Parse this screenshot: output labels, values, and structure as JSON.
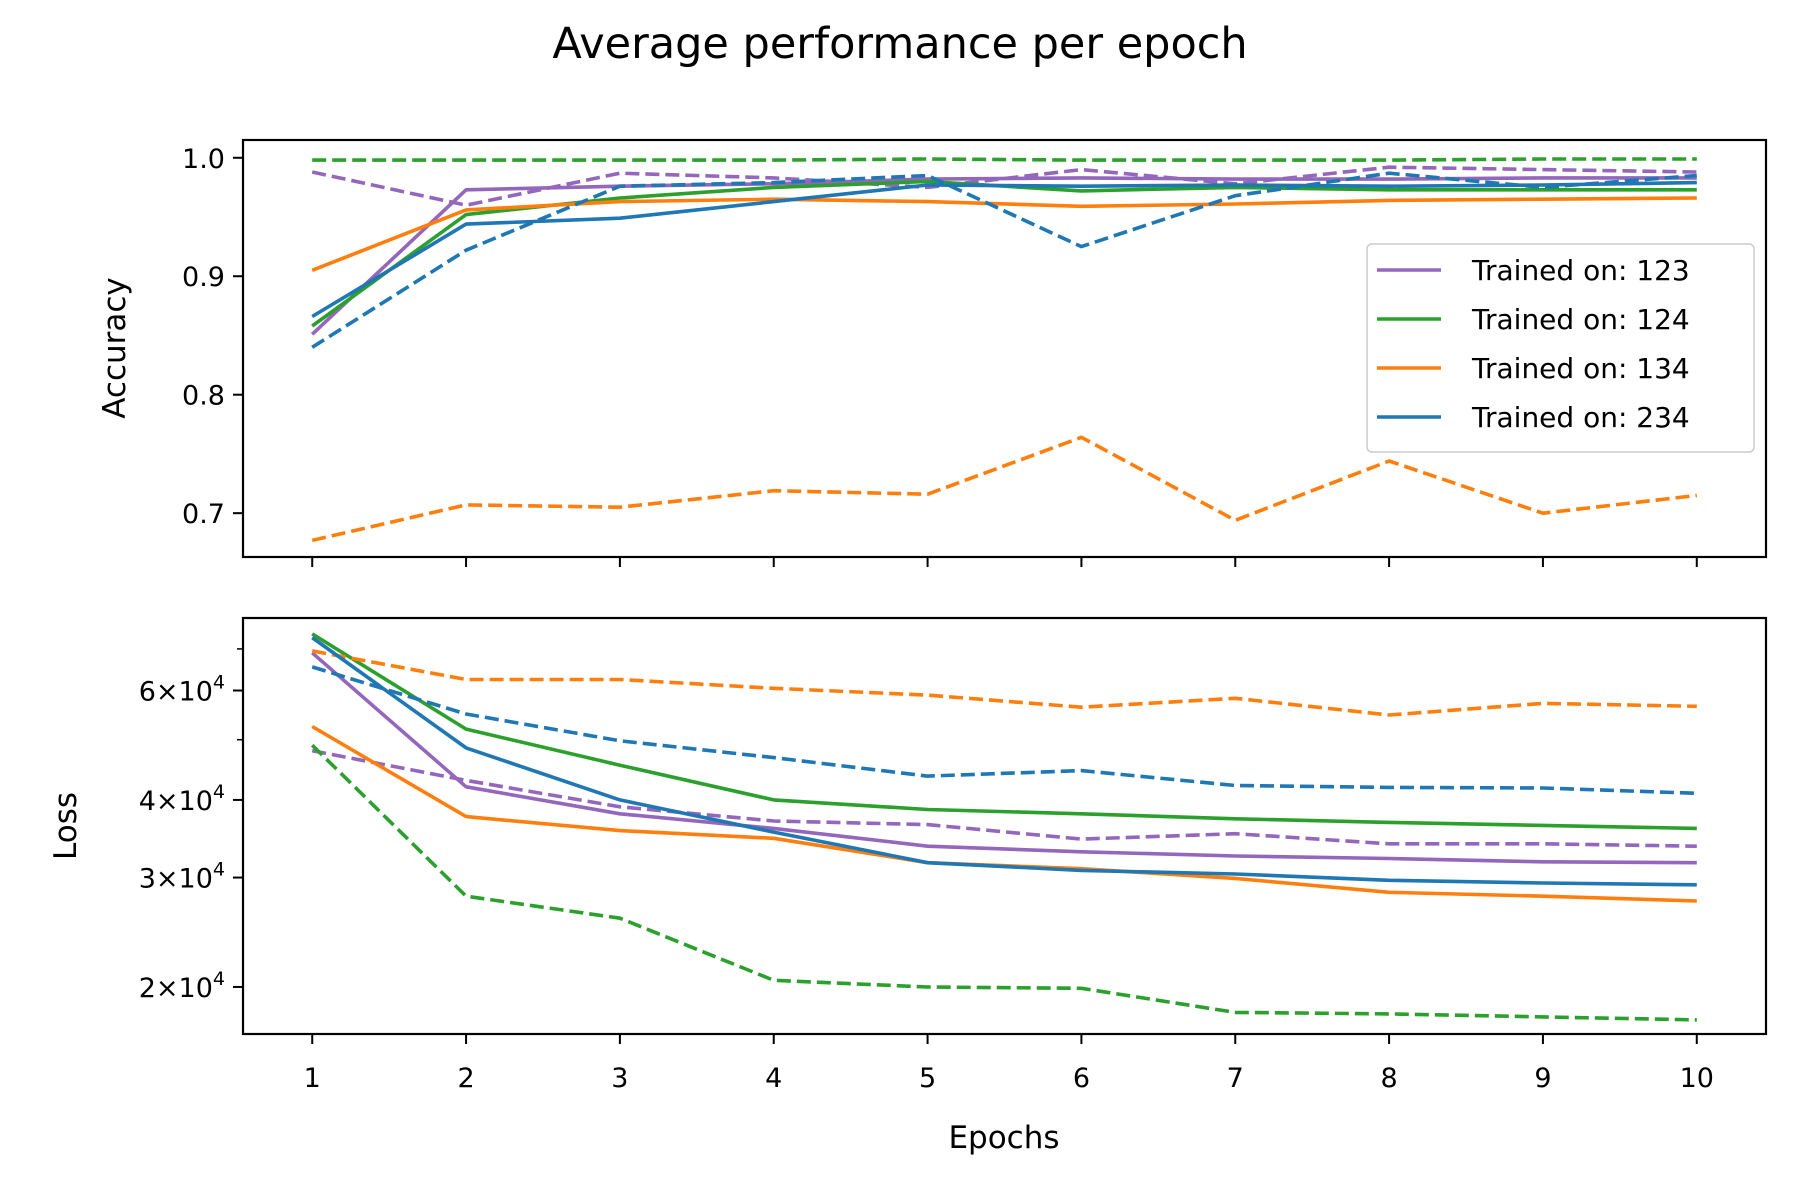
{
  "title": "Average performance per epoch",
  "x": [
    1,
    2,
    3,
    4,
    5,
    6,
    7,
    8,
    9,
    10
  ],
  "xlabel": "Epochs",
  "legend": {
    "location": "center-right",
    "entries": [
      "Trained on: 123",
      "Trained on: 124",
      "Trained on: 134",
      "Trained on: 234"
    ]
  },
  "colors": {
    "purple": "#9467bd",
    "green": "#2ca02c",
    "orange": "#ff7f0e",
    "blue": "#1f77b4"
  },
  "chart_data": [
    {
      "type": "line",
      "panel": "top",
      "ylabel": "Accuracy",
      "ylim": [
        0.663,
        1.015
      ],
      "yticks": [
        0.7,
        0.8,
        0.9,
        1.0
      ],
      "ytick_labels": [
        "0.7",
        "0.8",
        "0.9",
        "1.0"
      ],
      "series": [
        {
          "color": "purple",
          "style": "solid",
          "values": [
            0.851,
            0.973,
            0.976,
            0.978,
            0.982,
            0.983,
            0.982,
            0.982,
            0.983,
            0.983
          ]
        },
        {
          "color": "purple",
          "style": "dashed",
          "values": [
            0.988,
            0.96,
            0.987,
            0.983,
            0.975,
            0.99,
            0.978,
            0.992,
            0.99,
            0.988
          ]
        },
        {
          "color": "green",
          "style": "solid",
          "values": [
            0.858,
            0.952,
            0.966,
            0.975,
            0.98,
            0.972,
            0.975,
            0.973,
            0.973,
            0.973
          ]
        },
        {
          "color": "green",
          "style": "dashed",
          "values": [
            0.998,
            0.998,
            0.998,
            0.998,
            0.999,
            0.998,
            0.998,
            0.998,
            0.999,
            0.999
          ]
        },
        {
          "color": "orange",
          "style": "solid",
          "values": [
            0.905,
            0.956,
            0.963,
            0.965,
            0.963,
            0.959,
            0.961,
            0.964,
            0.965,
            0.966
          ]
        },
        {
          "color": "orange",
          "style": "dashed",
          "values": [
            0.677,
            0.707,
            0.705,
            0.719,
            0.716,
            0.764,
            0.694,
            0.744,
            0.7,
            0.715
          ]
        },
        {
          "color": "blue",
          "style": "solid",
          "values": [
            0.866,
            0.944,
            0.949,
            0.963,
            0.977,
            0.976,
            0.977,
            0.976,
            0.977,
            0.979
          ]
        },
        {
          "color": "blue",
          "style": "dashed",
          "values": [
            0.84,
            0.922,
            0.976,
            0.979,
            0.985,
            0.925,
            0.968,
            0.987,
            0.975,
            0.985
          ]
        }
      ]
    },
    {
      "type": "line",
      "panel": "bottom",
      "ylabel": "Loss",
      "yscale": "log",
      "ylim": [
        16800,
        78500
      ],
      "yticks": [
        20000,
        30000,
        40000,
        60000
      ],
      "ytick_labels": [
        {
          "mantissa": "2",
          "base": "10",
          "exponent": "4"
        },
        {
          "mantissa": "3",
          "base": "10",
          "exponent": "4"
        },
        {
          "mantissa": "4",
          "base": "10",
          "exponent": "4"
        },
        {
          "mantissa": "6",
          "base": "10",
          "exponent": "4"
        }
      ],
      "series": [
        {
          "color": "purple",
          "style": "solid",
          "values": [
            69000,
            42000,
            38000,
            36000,
            33700,
            33000,
            32500,
            32200,
            31800,
            31700
          ]
        },
        {
          "color": "purple",
          "style": "dashed",
          "values": [
            48000,
            43000,
            39000,
            37000,
            36500,
            34600,
            35300,
            34000,
            34000,
            33700
          ]
        },
        {
          "color": "green",
          "style": "solid",
          "values": [
            74000,
            52000,
            45500,
            40000,
            38600,
            38000,
            37300,
            36800,
            36400,
            36000
          ]
        },
        {
          "color": "green",
          "style": "dashed",
          "values": [
            49000,
            28000,
            25800,
            20500,
            20000,
            19900,
            18200,
            18100,
            17900,
            17700
          ]
        },
        {
          "color": "orange",
          "style": "solid",
          "values": [
            52500,
            37600,
            35700,
            34700,
            31700,
            31000,
            29900,
            28400,
            28000,
            27500
          ]
        },
        {
          "color": "orange",
          "style": "dashed",
          "values": [
            69500,
            62500,
            62500,
            60500,
            59000,
            56400,
            58300,
            54800,
            57200,
            56600
          ]
        },
        {
          "color": "blue",
          "style": "solid",
          "values": [
            73000,
            48500,
            40000,
            35500,
            31700,
            30800,
            30400,
            29700,
            29400,
            29200
          ]
        },
        {
          "color": "blue",
          "style": "dashed",
          "values": [
            65500,
            55000,
            49800,
            46800,
            43700,
            44600,
            42200,
            41900,
            41800,
            41000
          ]
        }
      ]
    }
  ]
}
